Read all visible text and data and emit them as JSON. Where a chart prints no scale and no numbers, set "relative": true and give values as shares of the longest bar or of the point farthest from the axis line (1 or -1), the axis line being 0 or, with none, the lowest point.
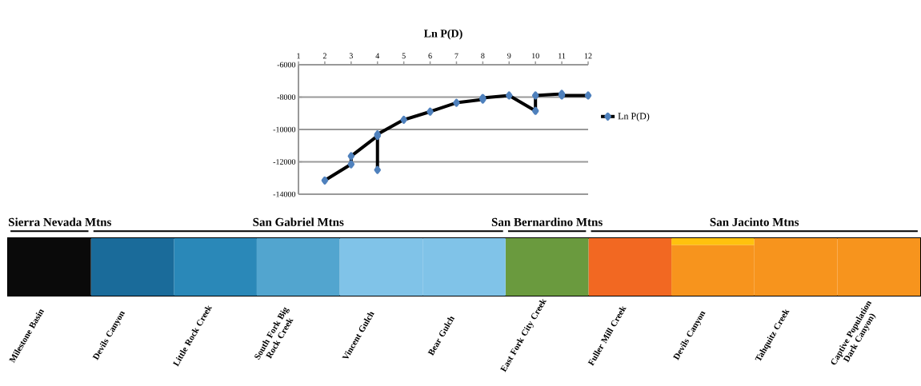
{
  "chart_data": [
    {
      "type": "line",
      "title": "Ln P(D)",
      "xlim": [
        1,
        12
      ],
      "xticks": [
        1,
        2,
        3,
        4,
        5,
        6,
        7,
        8,
        9,
        10,
        11,
        12
      ],
      "ylim": [
        -14000,
        -6000
      ],
      "yticks": [
        -14000,
        -12000,
        -10000,
        -8000,
        -6000
      ],
      "grid": "y",
      "legend": "right",
      "marker": "diamond",
      "series": [
        {
          "name": "Ln P(D)",
          "color": "#000000",
          "x": [
            2,
            3,
            3,
            4,
            4,
            4,
            5,
            6,
            7,
            8,
            8,
            9,
            10,
            10,
            11,
            11,
            12
          ],
          "values": [
            -13150,
            -12150,
            -11650,
            -10400,
            -12500,
            -10300,
            -9400,
            -8900,
            -8350,
            -8150,
            -8050,
            -7900,
            -8850,
            -7900,
            -7800,
            -7900,
            -7900
          ]
        }
      ]
    },
    {
      "type": "bar",
      "stacked": true,
      "relative": true,
      "categories": [
        "Milestone Basin",
        "Devils Canyon",
        "Little Rock Creek",
        "South Fork Big Rock Creek",
        "Vincent Gulch",
        "Bear Gulch",
        "East Fork City Creek",
        "Fuller Mill Creek",
        "Devils Canyon",
        "Tahquitz Creek",
        "Captive Population Dark Canyon)"
      ],
      "annotations": [
        "Sierra Nevada Mtns",
        "San Gabriel Mtns",
        "San Bernardino Mtns",
        "San Jacinto Mtns"
      ],
      "series": [
        {
          "color": "#0a0a0a",
          "values": [
            1,
            0,
            0,
            0,
            0,
            0,
            0,
            0,
            0,
            0,
            0
          ]
        },
        {
          "color": "#1a6b9a",
          "values": [
            0,
            1,
            0,
            0,
            0,
            0,
            0,
            0,
            0,
            0,
            0
          ]
        },
        {
          "color": "#2a88b8",
          "values": [
            0,
            0,
            1,
            0,
            0,
            0,
            0,
            0,
            0,
            0,
            0
          ]
        },
        {
          "color": "#52a5cf",
          "values": [
            0,
            0,
            0,
            1,
            0,
            0,
            0,
            0,
            0,
            0,
            0
          ]
        },
        {
          "color": "#80c3e8",
          "values": [
            0,
            0,
            0,
            0,
            1,
            1,
            0,
            0,
            0,
            0,
            0
          ]
        },
        {
          "color": "#6a9a3e",
          "values": [
            0,
            0,
            0,
            0,
            0,
            0,
            1,
            0,
            0,
            0,
            0
          ]
        },
        {
          "color": "#f26822",
          "values": [
            0,
            0,
            0,
            0,
            0,
            0,
            0,
            1,
            0,
            0,
            0
          ]
        },
        {
          "color": "#f7941d",
          "values": [
            0,
            0,
            0,
            0,
            0,
            0,
            0,
            0,
            0.88,
            1,
            1
          ]
        },
        {
          "color": "#ffc20e",
          "values": [
            0,
            0,
            0,
            0,
            0,
            0,
            0,
            0,
            0.12,
            0,
            0
          ]
        }
      ]
    }
  ]
}
